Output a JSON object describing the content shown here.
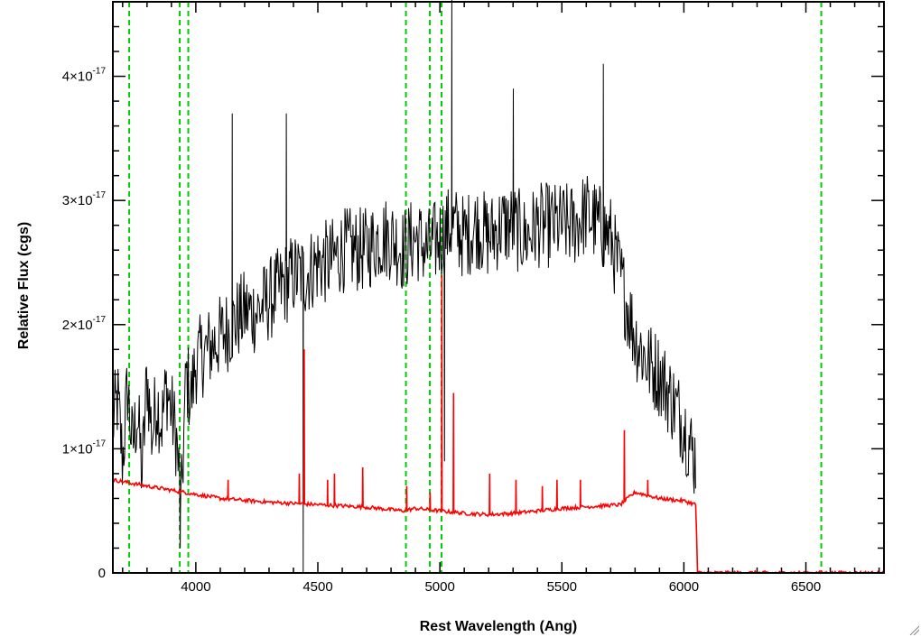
{
  "chart_data": {
    "type": "line",
    "title": "",
    "xlabel": "Rest Wavelength (Ang)",
    "ylabel": "Relative Flux (cgs)",
    "xlim": [
      3660,
      6820
    ],
    "ylim": [
      0,
      4.6e-17
    ],
    "x_ticks": [
      {
        "value": 4000,
        "label": "4000"
      },
      {
        "value": 4500,
        "label": "4500"
      },
      {
        "value": 5000,
        "label": "5000"
      },
      {
        "value": 5500,
        "label": "5500"
      },
      {
        "value": 6000,
        "label": "6000"
      },
      {
        "value": 6500,
        "label": "6500"
      }
    ],
    "y_ticks": [
      {
        "value": 0,
        "label": "0"
      },
      {
        "value": 1e-17,
        "mantissa": "1×10",
        "exponent": "-17"
      },
      {
        "value": 2e-17,
        "mantissa": "2×10",
        "exponent": "-17"
      },
      {
        "value": 3e-17,
        "mantissa": "3×10",
        "exponent": "-17"
      },
      {
        "value": 4e-17,
        "mantissa": "4×10",
        "exponent": "-17"
      }
    ],
    "grid": false,
    "legend": "none",
    "vertical_lines": {
      "style": "dashed",
      "color": "#00cc00",
      "x": [
        3727,
        3934,
        3969,
        4861,
        4959,
        5007,
        6563
      ]
    },
    "series": [
      {
        "color": "#000000",
        "x": [
          3660,
          3680,
          3700,
          3720,
          3740,
          3760,
          3780,
          3800,
          3820,
          3840,
          3860,
          3880,
          3900,
          3920,
          3940,
          3960,
          3980,
          4000,
          4050,
          4100,
          4150,
          4200,
          4250,
          4300,
          4350,
          4400,
          4450,
          4500,
          4550,
          4600,
          4650,
          4700,
          4750,
          4800,
          4850,
          4900,
          4950,
          5000,
          5050,
          5100,
          5150,
          5200,
          5250,
          5300,
          5350,
          5400,
          5450,
          5500,
          5550,
          5600,
          5650,
          5700,
          5750,
          5800,
          5850,
          5900,
          5950,
          6000,
          6030,
          6050
        ],
        "y": [
          1.2e-17,
          1.4e-17,
          9e-18,
          1.5e-17,
          1e-17,
          1.3e-17,
          8e-18,
          1.6e-17,
          1.1e-17,
          1.4e-17,
          1.2e-17,
          1.5e-17,
          1.3e-17,
          1.1e-17,
          5e-18,
          1.6e-17,
          1.4e-17,
          1.7e-17,
          1.8e-17,
          1.9e-17,
          2e-17,
          2.1e-17,
          2.1e-17,
          2.2e-17,
          2.3e-17,
          2.4e-17,
          2.4e-17,
          2.5e-17,
          2.5e-17,
          2.6e-17,
          2.6e-17,
          2.6e-17,
          2.7e-17,
          2.7e-17,
          2.6e-17,
          2.7e-17,
          2.6e-17,
          2.7e-17,
          2.8e-17,
          2.7e-17,
          2.8e-17,
          2.7e-17,
          2.8e-17,
          2.8e-17,
          2.7e-17,
          2.8e-17,
          2.8e-17,
          2.8e-17,
          2.8e-17,
          2.9e-17,
          2.8e-17,
          2.7e-17,
          2.3e-17,
          1.9e-17,
          1.7e-17,
          1.6e-17,
          1.4e-17,
          1.2e-17,
          1e-17,
          9e-18
        ],
        "noise": 3.5e-18,
        "spikes": [
          {
            "x": 4440,
            "y": 0.0
          },
          {
            "x": 5050,
            "y": 4.7e-17
          },
          {
            "x": 5020,
            "y": 9e-18
          },
          {
            "x": 3935,
            "y": 2e-18
          },
          {
            "x": 4150,
            "y": 3.7e-17
          },
          {
            "x": 4370,
            "y": 3.7e-17
          },
          {
            "x": 5300,
            "y": 3.9e-17
          },
          {
            "x": 5670,
            "y": 4.1e-17
          }
        ]
      },
      {
        "color": "#ff0000",
        "x": [
          3660,
          3800,
          3950,
          4100,
          4300,
          4500,
          4700,
          4850,
          4900,
          5000,
          5100,
          5200,
          5300,
          5500,
          5740,
          5800,
          5900,
          6000,
          6050,
          6055,
          6820
        ],
        "y": [
          7.5e-18,
          7e-18,
          6.5e-18,
          6e-18,
          5.7e-18,
          5.5e-18,
          5.3e-18,
          5e-18,
          5.2e-18,
          5e-18,
          4.8e-18,
          4.7e-18,
          4.8e-18,
          5.2e-18,
          5.5e-18,
          6.5e-18,
          6e-18,
          5.8e-18,
          5.5e-18,
          0.0,
          0.0
        ],
        "spikes": [
          {
            "x": 4130,
            "y": 7.5e-18
          },
          {
            "x": 4425,
            "y": 8e-18
          },
          {
            "x": 4443,
            "y": 1.8e-17
          },
          {
            "x": 4540,
            "y": 7.5e-18
          },
          {
            "x": 4568,
            "y": 8e-18
          },
          {
            "x": 4685,
            "y": 8.5e-18
          },
          {
            "x": 4865,
            "y": 7e-18
          },
          {
            "x": 4960,
            "y": 6.5e-18
          },
          {
            "x": 5008,
            "y": 2.4e-17
          },
          {
            "x": 5055,
            "y": 1.45e-17
          },
          {
            "x": 5205,
            "y": 8e-18
          },
          {
            "x": 5310,
            "y": 7.5e-18
          },
          {
            "x": 5420,
            "y": 7e-18
          },
          {
            "x": 5480,
            "y": 7.5e-18
          },
          {
            "x": 5575,
            "y": 7.5e-18
          },
          {
            "x": 5755,
            "y": 1.15e-17
          },
          {
            "x": 5850,
            "y": 7.5e-18
          }
        ]
      }
    ]
  }
}
